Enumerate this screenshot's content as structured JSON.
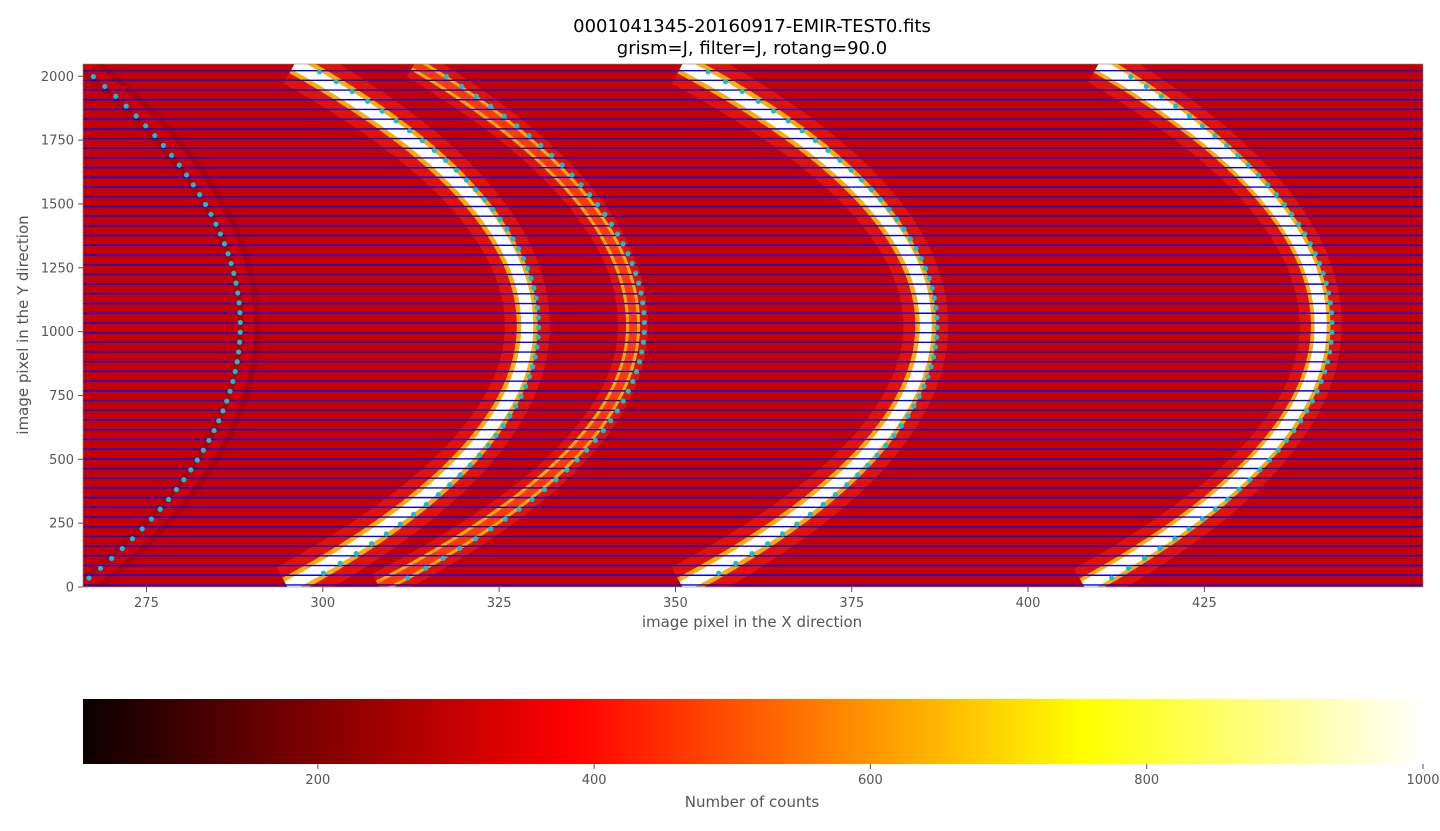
{
  "chart_data": {
    "type": "heatmap",
    "title": "0001041345-20160917-EMIR-TEST0.fits",
    "subtitle": "grism=J, filter=J, rotang=90.0",
    "xlabel": "image pixel in the X direction",
    "ylabel": "image pixel in the Y direction",
    "xlim": [
      266,
      456
    ],
    "ylim": [
      0,
      2048
    ],
    "x_ticks": [
      "275",
      "300",
      "325",
      "350",
      "375",
      "400",
      "425"
    ],
    "x_tick_values": [
      275,
      300,
      325,
      350,
      375,
      400,
      425
    ],
    "y_ticks": [
      "0",
      "250",
      "500",
      "750",
      "1000",
      "1250",
      "1500",
      "1750",
      "2000"
    ],
    "y_tick_values": [
      0,
      250,
      500,
      750,
      1000,
      1250,
      1500,
      1750,
      2000
    ],
    "colormap": "hot",
    "colorbar": {
      "label": "Number of counts",
      "range": [
        30,
        1000
      ],
      "ticks": [
        "200",
        "400",
        "600",
        "800",
        "1000"
      ],
      "tick_values": [
        200,
        400,
        600,
        800,
        1000
      ]
    },
    "arcs": [
      {
        "description": "faint arc",
        "x_apex": 289.5,
        "x_ends": 266.5,
        "brightness": 0.25
      },
      {
        "description": "bright arc",
        "x_apex": 329,
        "x_top": 296,
        "x_bottom": 295,
        "brightness": 1.0
      },
      {
        "description": "medium arc",
        "x_apex": 344,
        "x_top": 313,
        "x_bottom": 308,
        "brightness": 0.5
      },
      {
        "description": "bright arc",
        "x_apex": 385.5,
        "x_top": 351,
        "x_bottom": 351,
        "brightness": 1.0
      },
      {
        "description": "bright arc",
        "x_apex": 441.5,
        "x_top": 410,
        "x_bottom": 408,
        "brightness": 0.9
      }
    ],
    "horizontal_lines_color": "#0000ff",
    "marker_color": "#17becf"
  }
}
